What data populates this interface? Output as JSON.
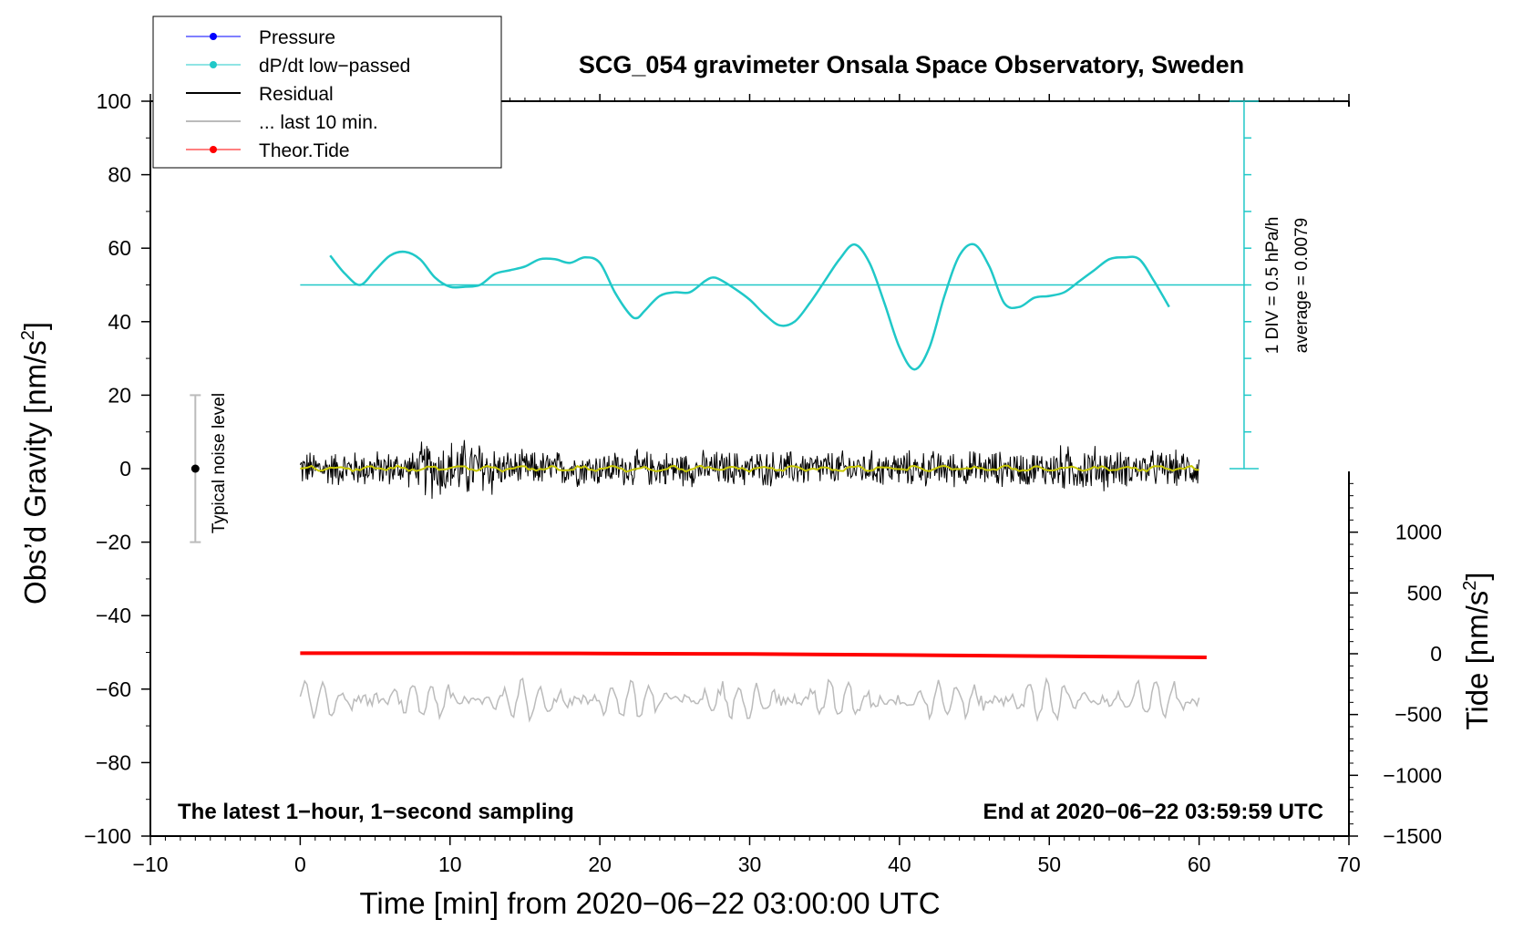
{
  "chart_data": {
    "type": "line",
    "title": "SCG_054 gravimeter Onsala Space Observatory, Sweden",
    "xlabel": "Time [min] from 2020−06−22 03:00:00 UTC",
    "ylabel_left": "Obs’d Gravity [nm/s",
    "ylabel_left_sup": "2",
    "ylabel_left_end": "]",
    "ylabel_right": "Tide [nm/s",
    "ylabel_right_sup": "2",
    "ylabel_right_end": "]",
    "xlim": [
      -10,
      70
    ],
    "ylim_left": [
      -100,
      100
    ],
    "ylim_right": [
      -1500,
      1500
    ],
    "x_ticks": [
      "−10",
      "0",
      "10",
      "20",
      "30",
      "40",
      "50",
      "60",
      "70"
    ],
    "y_left_ticks": [
      "100",
      "80",
      "60",
      "40",
      "20",
      "0",
      "−20",
      "−40",
      "−60",
      "−80",
      "−100"
    ],
    "y_right_ticks": [
      "1000",
      "500",
      "0",
      "−500",
      "−1000",
      "−1500"
    ],
    "note_left": "The latest 1−hour, 1−second sampling",
    "note_right": "End at 2020−06−22 03:59:59 UTC",
    "noise_label": "Typical noise level",
    "noise_bar": {
      "x": -7,
      "center": 0,
      "half_range": 20
    },
    "pressure_scale_label": "1 DIV = 0.5 hPa/h",
    "pressure_average_label": "average = 0.0079",
    "pressure_scale_axis": {
      "x": 63,
      "from": 0,
      "to": 100,
      "divisions": 10
    },
    "legend": [
      {
        "label": "Pressure",
        "color": "#0000ff",
        "marker": true
      },
      {
        "label": "dP/dt low−passed",
        "color": "#20c8c8",
        "marker": true
      },
      {
        "label": "Residual",
        "color": "#000000",
        "marker": false
      },
      {
        "label": "... last 10 min.",
        "color": "#bbbbbb",
        "marker": false
      },
      {
        "label": "Theor.Tide",
        "color": "#ff0000",
        "marker": true
      }
    ],
    "series": [
      {
        "name": "dP/dt low-passed",
        "color": "#20c8c8",
        "baseline": 50,
        "x": [
          2,
          3,
          4,
          5,
          6,
          7,
          8,
          9,
          10,
          11,
          12,
          13,
          14,
          15,
          16,
          17,
          18,
          19,
          20,
          21,
          22,
          22.5,
          23,
          24,
          25,
          26,
          27,
          27.5,
          28,
          29,
          30,
          31,
          32,
          33,
          34,
          35,
          36,
          37,
          38,
          39,
          40,
          41,
          42,
          43,
          44,
          45,
          46,
          47,
          48,
          49,
          50,
          51,
          52,
          53,
          54,
          55,
          56,
          57,
          58
        ],
        "values": [
          58,
          53,
          50,
          54,
          58,
          59,
          57,
          52,
          49.5,
          49.5,
          50,
          53,
          54,
          55,
          57,
          57,
          56,
          57.5,
          56,
          48,
          42,
          41,
          43,
          47,
          48,
          48,
          51,
          52,
          51.5,
          49,
          46,
          42,
          39,
          40,
          45,
          51,
          57,
          61,
          56,
          45,
          33,
          27,
          33,
          47,
          58,
          61,
          55,
          45,
          44,
          46.5,
          47,
          48,
          51,
          54,
          57,
          57.5,
          57,
          51,
          44
        ]
      },
      {
        "name": "Residual",
        "color": "#000000",
        "x_start": 0,
        "x_end": 60,
        "amplitude": 4
      },
      {
        "name": "Residual smoothed",
        "color": "#c8c800",
        "x_start": 0,
        "x_end": 60
      },
      {
        "name": "... last 10 min.",
        "color": "#bbbbbb",
        "x_start": 0,
        "x_end": 60,
        "center": -63,
        "amplitude": 5
      },
      {
        "name": "Theor.Tide",
        "color": "#ff0000",
        "x": [
          0,
          10,
          20,
          30,
          40,
          50,
          60.5
        ],
        "values": [
          5,
          5,
          2,
          -2,
          -10,
          -20,
          -30
        ]
      }
    ]
  }
}
